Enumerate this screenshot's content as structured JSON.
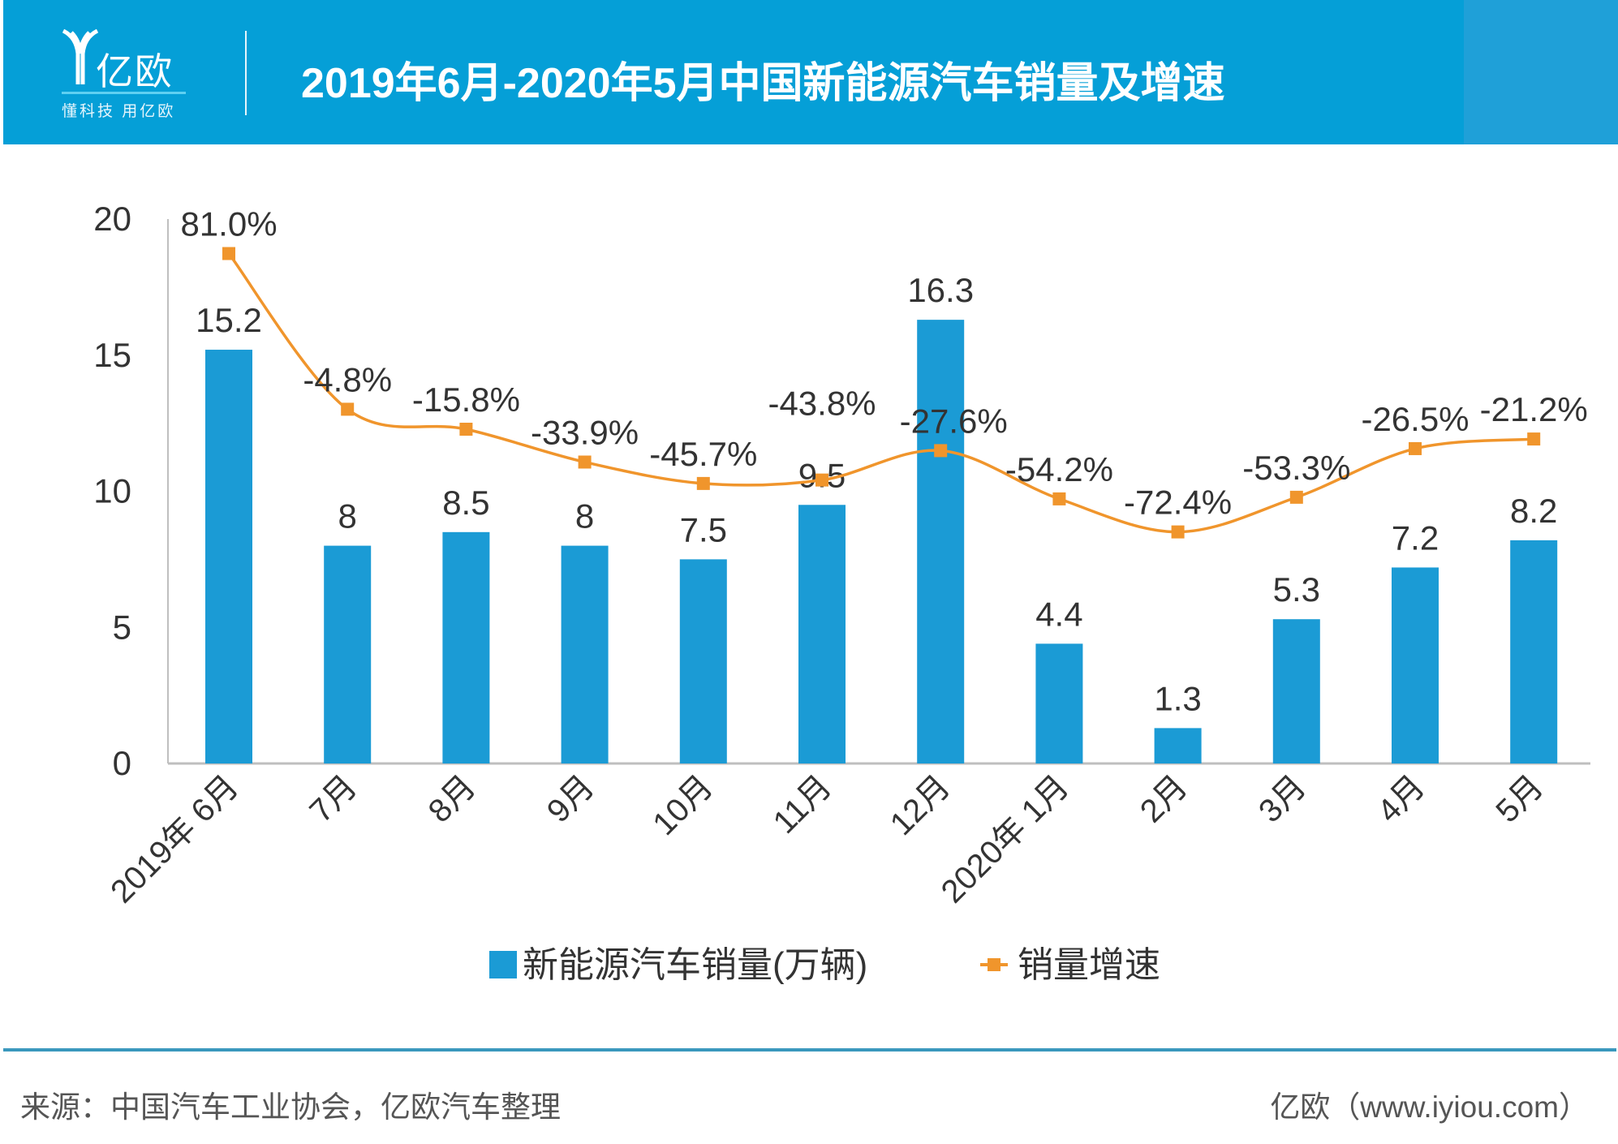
{
  "header": {
    "logo_text": "亿欧",
    "logo_slogan": "懂科技 用亿欧",
    "title": "2019年6月-2020年5月中国新能源汽车销量及增速"
  },
  "colors": {
    "header_bg": "#059fd7",
    "bar": "#1b9bd5",
    "line": "#f0952c",
    "text": "#333333"
  },
  "chart_data": {
    "type": "bar+line",
    "categories": [
      "2019年 6月",
      "7月",
      "8月",
      "9月",
      "10月",
      "11月",
      "12月",
      "2020年 1月",
      "2月",
      "3月",
      "4月",
      "5月"
    ],
    "series": [
      {
        "name": "新能源汽车销量(万辆)",
        "type": "bar",
        "axis": "left",
        "values": [
          15.2,
          8,
          8.5,
          8,
          7.5,
          9.5,
          16.3,
          4.4,
          1.3,
          5.3,
          7.2,
          8.2
        ],
        "labels": [
          "15.2",
          "8",
          "8.5",
          "8",
          "7.5",
          "9.5",
          "16.3",
          "4.4",
          "1.3",
          "5.3",
          "7.2",
          "8.2"
        ]
      },
      {
        "name": "销量增速",
        "type": "line",
        "axis": "right-hidden",
        "smooth": true,
        "values": [
          81.0,
          -4.8,
          -15.8,
          -33.9,
          -45.7,
          -43.8,
          -27.6,
          -54.2,
          -72.4,
          -53.3,
          -26.5,
          -21.2
        ],
        "labels": [
          "81.0%",
          "-4.8%",
          "-15.8%",
          "-33.9%",
          "-45.7%",
          "-43.8%",
          "-27.6%",
          "-54.2%",
          "-72.4%",
          "-53.3%",
          "-26.5%",
          "-21.2%"
        ]
      }
    ],
    "ylim": [
      0,
      20
    ],
    "yticks": [
      "0",
      "5",
      "10",
      "15",
      "20"
    ],
    "y2lim": [
      -200,
      100
    ],
    "grid": false,
    "legend": "bottom"
  },
  "footer": {
    "source": "来源：中国汽车工业协会，亿欧汽车整理",
    "credit": "亿欧（www.iyiou.com）"
  }
}
